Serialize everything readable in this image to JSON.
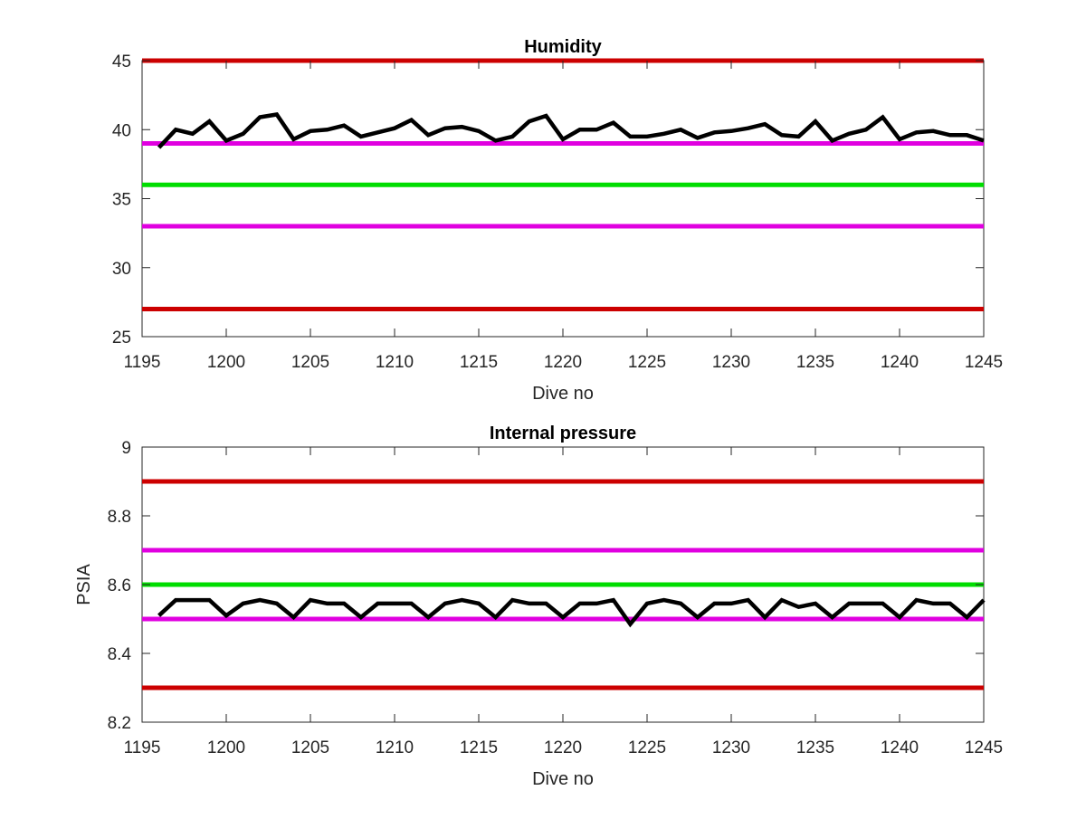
{
  "chart_data": [
    {
      "type": "line",
      "title": "Humidity",
      "xlabel": "Dive no",
      "ylabel": "",
      "xlim": [
        1195,
        1245
      ],
      "ylim": [
        25,
        45
      ],
      "grid": false,
      "x_ticks": [
        "1195",
        "1200",
        "1205",
        "1210",
        "1215",
        "1220",
        "1225",
        "1230",
        "1235",
        "1240",
        "1245"
      ],
      "y_ticks": [
        "25",
        "30",
        "35",
        "40",
        "45"
      ],
      "reference_lines": [
        {
          "y": 45,
          "color": "#cc0000"
        },
        {
          "y": 39,
          "color": "#e000e0"
        },
        {
          "y": 36,
          "color": "#00dd00"
        },
        {
          "y": 33,
          "color": "#e000e0"
        },
        {
          "y": 27,
          "color": "#cc0000"
        }
      ],
      "series": [
        {
          "color": "#000000",
          "x": [
            1196,
            1197,
            1198,
            1199,
            1200,
            1201,
            1202,
            1203,
            1204,
            1205,
            1206,
            1207,
            1208,
            1209,
            1210,
            1211,
            1212,
            1213,
            1214,
            1215,
            1216,
            1217,
            1218,
            1219,
            1220,
            1221,
            1222,
            1223,
            1224,
            1225,
            1226,
            1227,
            1228,
            1229,
            1230,
            1231,
            1232,
            1233,
            1234,
            1235,
            1236,
            1237,
            1238,
            1239,
            1240,
            1241,
            1242,
            1243,
            1244,
            1245
          ],
          "values": [
            38.7,
            40.0,
            39.7,
            40.6,
            39.2,
            39.7,
            40.9,
            41.1,
            39.3,
            39.9,
            40.0,
            40.3,
            39.5,
            39.8,
            40.1,
            40.7,
            39.6,
            40.1,
            40.2,
            39.9,
            39.2,
            39.5,
            40.6,
            41.0,
            39.3,
            40.0,
            40.0,
            40.5,
            39.5,
            39.5,
            39.7,
            40.0,
            39.4,
            39.8,
            39.9,
            40.1,
            40.4,
            39.6,
            39.5,
            40.6,
            39.2,
            39.7,
            40.0,
            40.9,
            39.3,
            39.8,
            39.9,
            39.6,
            39.6,
            39.2
          ]
        }
      ]
    },
    {
      "type": "line",
      "title": "Internal pressure",
      "xlabel": "Dive no",
      "ylabel": "PSIA",
      "xlim": [
        1195,
        1245
      ],
      "ylim": [
        8.2,
        9
      ],
      "grid": false,
      "x_ticks": [
        "1195",
        "1200",
        "1205",
        "1210",
        "1215",
        "1220",
        "1225",
        "1230",
        "1235",
        "1240",
        "1245"
      ],
      "y_ticks": [
        "8.2",
        "8.4",
        "8.6",
        "8.8",
        "9"
      ],
      "reference_lines": [
        {
          "y": 8.9,
          "color": "#cc0000"
        },
        {
          "y": 8.7,
          "color": "#e000e0"
        },
        {
          "y": 8.6,
          "color": "#00dd00"
        },
        {
          "y": 8.5,
          "color": "#e000e0"
        },
        {
          "y": 8.3,
          "color": "#cc0000"
        }
      ],
      "series": [
        {
          "color": "#000000",
          "x": [
            1196,
            1197,
            1198,
            1199,
            1200,
            1201,
            1202,
            1203,
            1204,
            1205,
            1206,
            1207,
            1208,
            1209,
            1210,
            1211,
            1212,
            1213,
            1214,
            1215,
            1216,
            1217,
            1218,
            1219,
            1220,
            1221,
            1222,
            1223,
            1224,
            1225,
            1226,
            1227,
            1228,
            1229,
            1230,
            1231,
            1232,
            1233,
            1234,
            1235,
            1236,
            1237,
            1238,
            1239,
            1240,
            1241,
            1242,
            1243,
            1244,
            1245
          ],
          "values": [
            8.51,
            8.555,
            8.555,
            8.555,
            8.51,
            8.545,
            8.555,
            8.545,
            8.505,
            8.555,
            8.545,
            8.545,
            8.505,
            8.545,
            8.545,
            8.545,
            8.505,
            8.545,
            8.555,
            8.545,
            8.505,
            8.555,
            8.545,
            8.545,
            8.505,
            8.545,
            8.545,
            8.555,
            8.485,
            8.545,
            8.555,
            8.545,
            8.505,
            8.545,
            8.545,
            8.555,
            8.505,
            8.555,
            8.535,
            8.545,
            8.505,
            8.545,
            8.545,
            8.545,
            8.505,
            8.555,
            8.545,
            8.545,
            8.505,
            8.555
          ]
        }
      ]
    }
  ]
}
